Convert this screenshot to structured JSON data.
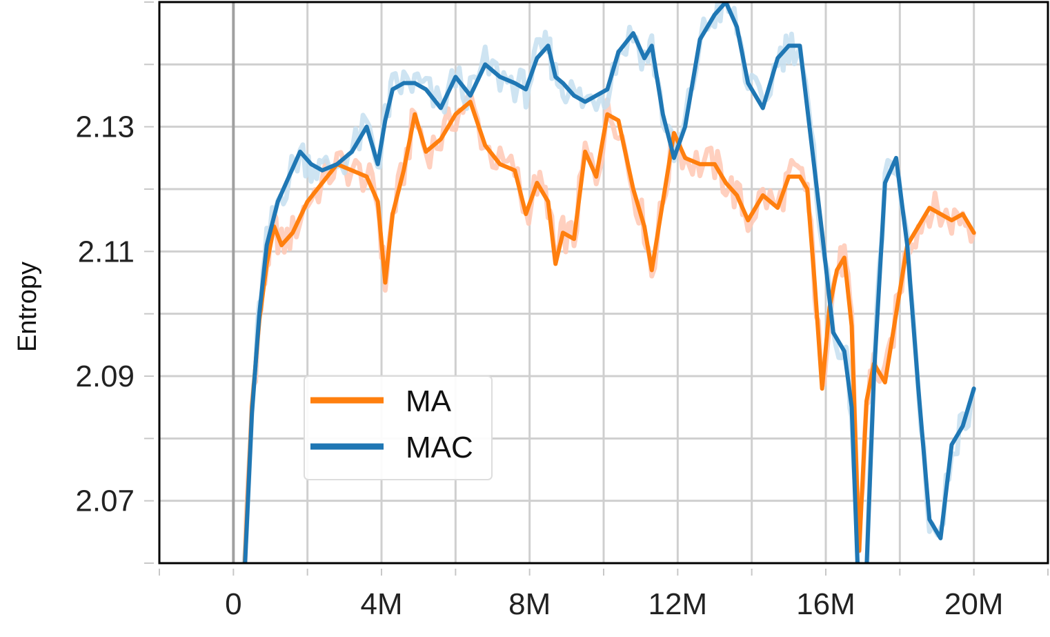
{
  "chart_data": {
    "type": "line",
    "title": "",
    "xlabel": "",
    "ylabel": "Entropy",
    "xlim": [
      -2000000,
      22000000
    ],
    "ylim": [
      2.06,
      2.15
    ],
    "xticks": [
      0,
      4000000,
      8000000,
      12000000,
      16000000,
      20000000
    ],
    "xtick_labels": [
      "0",
      "4M",
      "8M",
      "12M",
      "16M",
      "20M"
    ],
    "xticks_minor": [
      -2000000,
      2000000,
      6000000,
      10000000,
      14000000,
      18000000,
      22000000
    ],
    "yticks": [
      2.07,
      2.09,
      2.11,
      2.13
    ],
    "ytick_labels": [
      "2.07",
      "2.09",
      "2.11",
      "2.13"
    ],
    "yticks_minor": [
      2.06,
      2.08,
      2.1,
      2.12,
      2.14,
      2.15
    ],
    "grid": true,
    "legend_position": "lower-left",
    "series": [
      {
        "name": "MA",
        "color": "#ff7f0e",
        "raw_color": "#ffc8b4",
        "x": [
          0,
          300000,
          500000,
          700000,
          900000,
          1100000,
          1300000,
          1600000,
          2000000,
          2400000,
          2800000,
          3200000,
          3600000,
          3900000,
          4100000,
          4300000,
          4600000,
          4900000,
          5200000,
          5600000,
          6000000,
          6400000,
          6800000,
          7200000,
          7600000,
          7900000,
          8200000,
          8500000,
          8700000,
          8900000,
          9200000,
          9500000,
          9800000,
          10100000,
          10400000,
          10800000,
          11100000,
          11300000,
          11600000,
          11900000,
          12200000,
          12600000,
          13000000,
          13300000,
          13600000,
          13900000,
          14300000,
          14700000,
          15000000,
          15300000,
          15500000,
          15700000,
          15900000,
          16100000,
          16300000,
          16500000,
          16700000,
          16900000,
          17100000,
          17300000,
          17600000,
          17900000,
          18200000,
          18500000,
          18800000,
          19100000,
          19400000,
          19700000,
          20000000
        ],
        "values": [
          2.055,
          2.059,
          2.085,
          2.099,
          2.108,
          2.114,
          2.111,
          2.113,
          2.118,
          2.121,
          2.124,
          2.123,
          2.122,
          2.118,
          2.105,
          2.116,
          2.123,
          2.132,
          2.126,
          2.128,
          2.132,
          2.134,
          2.127,
          2.124,
          2.123,
          2.116,
          2.121,
          2.118,
          2.108,
          2.113,
          2.112,
          2.126,
          2.122,
          2.132,
          2.131,
          2.12,
          2.114,
          2.107,
          2.118,
          2.129,
          2.125,
          2.124,
          2.124,
          2.121,
          2.119,
          2.115,
          2.119,
          2.117,
          2.122,
          2.122,
          2.12,
          2.105,
          2.088,
          2.101,
          2.107,
          2.109,
          2.098,
          2.062,
          2.086,
          2.092,
          2.089,
          2.1,
          2.111,
          2.114,
          2.117,
          2.116,
          2.115,
          2.116,
          2.113
        ]
      },
      {
        "name": "MAC",
        "color": "#1f77b4",
        "raw_color": "#c6dff0",
        "x": [
          0,
          300000,
          500000,
          700000,
          900000,
          1200000,
          1500000,
          1800000,
          2100000,
          2400000,
          2800000,
          3200000,
          3600000,
          3900000,
          4100000,
          4300000,
          4600000,
          4900000,
          5200000,
          5600000,
          6000000,
          6400000,
          6800000,
          7200000,
          7600000,
          7900000,
          8200000,
          8500000,
          8700000,
          8900000,
          9200000,
          9500000,
          9800000,
          10100000,
          10400000,
          10800000,
          11100000,
          11300000,
          11600000,
          11900000,
          12200000,
          12600000,
          13000000,
          13300000,
          13600000,
          13900000,
          14300000,
          14700000,
          15000000,
          15300000,
          15600000,
          15900000,
          16200000,
          16500000,
          16700000,
          16900000,
          17100000,
          17300000,
          17600000,
          17900000,
          18200000,
          18500000,
          18800000,
          19100000,
          19400000,
          19700000,
          20000000
        ],
        "values": [
          2.055,
          2.058,
          2.084,
          2.1,
          2.111,
          2.118,
          2.122,
          2.126,
          2.124,
          2.123,
          2.124,
          2.126,
          2.13,
          2.124,
          2.131,
          2.136,
          2.137,
          2.137,
          2.136,
          2.133,
          2.138,
          2.135,
          2.14,
          2.138,
          2.137,
          2.136,
          2.141,
          2.143,
          2.138,
          2.137,
          2.135,
          2.134,
          2.135,
          2.136,
          2.142,
          2.145,
          2.141,
          2.143,
          2.132,
          2.125,
          2.13,
          2.144,
          2.148,
          2.15,
          2.146,
          2.137,
          2.133,
          2.141,
          2.143,
          2.143,
          2.128,
          2.113,
          2.097,
          2.094,
          2.085,
          2.053,
          2.059,
          2.09,
          2.121,
          2.125,
          2.111,
          2.088,
          2.067,
          2.064,
          2.079,
          2.082,
          2.088
        ]
      }
    ]
  }
}
